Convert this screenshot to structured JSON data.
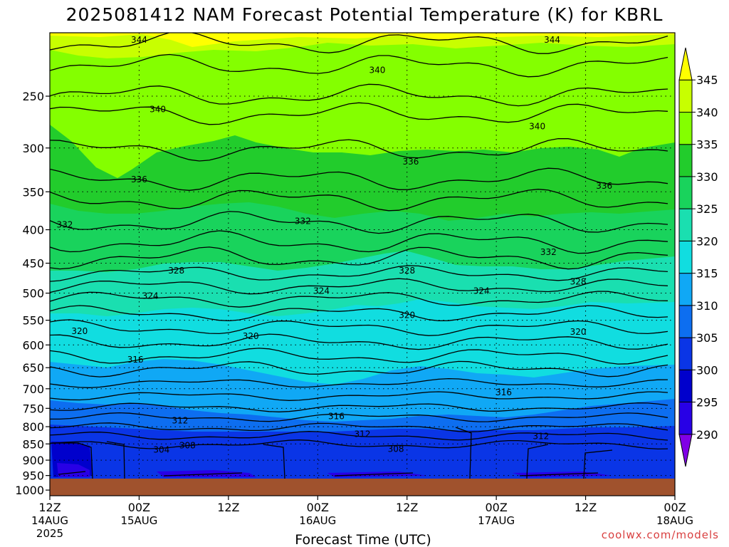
{
  "chart_data": {
    "type": "heatmap",
    "title": "2025081412 NAM Forecast Potential Temperature (K) for KBRL",
    "xlabel": "Forecast Time (UTC)",
    "ylabel": "",
    "credit": "coolwx.com/models",
    "pressure_ticks": [
      250,
      300,
      350,
      400,
      450,
      500,
      550,
      600,
      650,
      700,
      750,
      800,
      850,
      900,
      950,
      1000
    ],
    "y_range_hPa": [
      200,
      1020
    ],
    "y_scale": "log",
    "x_range_hours": [
      0,
      84
    ],
    "grid": true,
    "x_ticks": [
      {
        "hour": 0,
        "label": "12Z",
        "date": "14AUG",
        "year": "2025"
      },
      {
        "hour": 12,
        "label": "00Z",
        "date": "15AUG",
        "year": ""
      },
      {
        "hour": 24,
        "label": "12Z",
        "date": "",
        "year": ""
      },
      {
        "hour": 36,
        "label": "00Z",
        "date": "16AUG",
        "year": ""
      },
      {
        "hour": 48,
        "label": "12Z",
        "date": "",
        "year": ""
      },
      {
        "hour": 60,
        "label": "00Z",
        "date": "17AUG",
        "year": ""
      },
      {
        "hour": 72,
        "label": "12Z",
        "date": "",
        "year": ""
      },
      {
        "hour": 84,
        "label": "00Z",
        "date": "18AUG",
        "year": ""
      }
    ],
    "colorbar": {
      "levels": [
        290,
        295,
        300,
        305,
        310,
        315,
        320,
        325,
        330,
        335,
        340,
        345
      ],
      "labels": [
        "290",
        "295",
        "300",
        "305",
        "310",
        "315",
        "320",
        "325",
        "330",
        "335",
        "340",
        "345"
      ],
      "colors": [
        "#8000e6",
        "#2800e6",
        "#0000cc",
        "#0a35e6",
        "#0d6ef0",
        "#10a8f5",
        "#11dde0",
        "#1adfb0",
        "#19d35c",
        "#22cc2c",
        "#84ff00",
        "#c8ff00",
        "#ffff00"
      ]
    },
    "contour_labels": [
      {
        "text": "344",
        "hour": 12.0,
        "p": 205
      },
      {
        "text": "344",
        "hour": 67.5,
        "p": 205
      },
      {
        "text": "340",
        "hour": 44.0,
        "p": 228
      },
      {
        "text": "340",
        "hour": 14.5,
        "p": 262
      },
      {
        "text": "340",
        "hour": 65.5,
        "p": 278
      },
      {
        "text": "336",
        "hour": 48.5,
        "p": 315
      },
      {
        "text": "336",
        "hour": 12.0,
        "p": 335
      },
      {
        "text": "336",
        "hour": 74.5,
        "p": 343
      },
      {
        "text": "332",
        "hour": 2.0,
        "p": 393
      },
      {
        "text": "332",
        "hour": 34.0,
        "p": 388
      },
      {
        "text": "332",
        "hour": 67.0,
        "p": 433
      },
      {
        "text": "328",
        "hour": 17.0,
        "p": 462
      },
      {
        "text": "328",
        "hour": 48.0,
        "p": 462
      },
      {
        "text": "328",
        "hour": 71.0,
        "p": 480
      },
      {
        "text": "324",
        "hour": 13.5,
        "p": 505
      },
      {
        "text": "324",
        "hour": 36.5,
        "p": 496
      },
      {
        "text": "324",
        "hour": 58.0,
        "p": 496
      },
      {
        "text": "320",
        "hour": 4.0,
        "p": 572
      },
      {
        "text": "320",
        "hour": 27.0,
        "p": 582
      },
      {
        "text": "320",
        "hour": 48.0,
        "p": 540
      },
      {
        "text": "320",
        "hour": 71.0,
        "p": 573
      },
      {
        "text": "316",
        "hour": 11.5,
        "p": 632
      },
      {
        "text": "316",
        "hour": 38.5,
        "p": 771
      },
      {
        "text": "316",
        "hour": 61.0,
        "p": 709
      },
      {
        "text": "312",
        "hour": 17.5,
        "p": 783
      },
      {
        "text": "312",
        "hour": 42.0,
        "p": 821
      },
      {
        "text": "312",
        "hour": 66.0,
        "p": 827
      },
      {
        "text": "308",
        "hour": 18.5,
        "p": 855
      },
      {
        "text": "308",
        "hour": 46.5,
        "p": 866
      },
      {
        "text": "304",
        "hour": 15.0,
        "p": 868
      }
    ]
  }
}
